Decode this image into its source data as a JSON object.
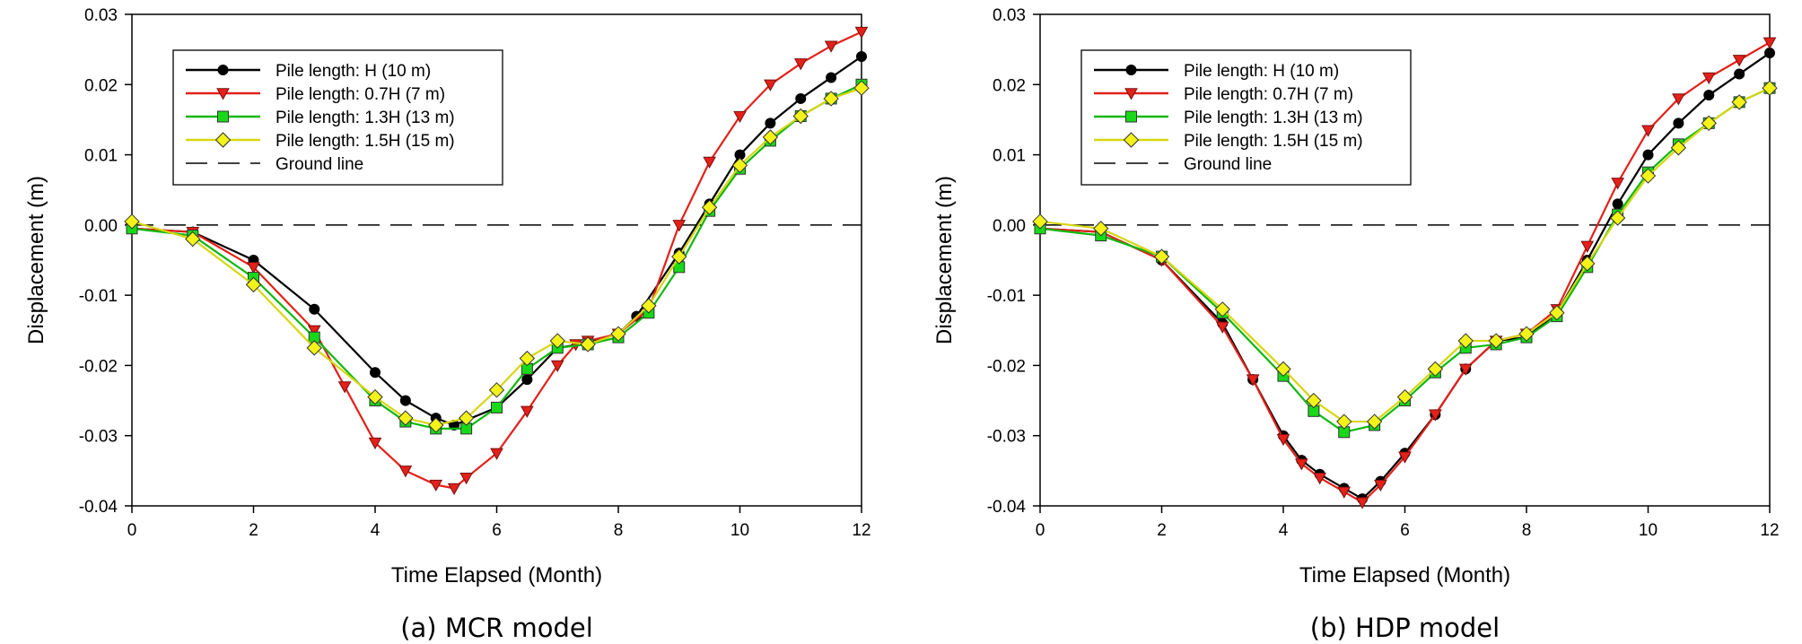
{
  "chart_data": [
    {
      "type": "line",
      "caption": "(a) MCR model",
      "xlabel": "Time Elapsed (Month)",
      "ylabel": "Displacement (m)",
      "xlim": [
        0,
        12
      ],
      "ylim": [
        -0.04,
        0.03
      ],
      "xticks": [
        "0",
        "2",
        "4",
        "6",
        "8",
        "10",
        "12"
      ],
      "yticks": [
        "-0.04",
        "-0.03",
        "-0.02",
        "-0.01",
        "0.00",
        "0.01",
        "0.02",
        "0.03"
      ],
      "grid": false,
      "legend_position": "top-left",
      "reference_line": {
        "name": "Ground line",
        "y": 0.0
      },
      "series": [
        {
          "name": "Pile length: H (10 m)",
          "color": "#000000",
          "marker": "circle",
          "x": [
            0,
            1,
            2,
            3,
            4,
            4.5,
            5,
            5.3,
            6,
            6.5,
            7,
            7.5,
            8,
            8.3,
            9,
            9.5,
            10,
            10.5,
            11,
            11.5,
            12
          ],
          "y": [
            -0.0005,
            -0.001,
            -0.005,
            -0.012,
            -0.021,
            -0.025,
            -0.0275,
            -0.0285,
            -0.026,
            -0.022,
            -0.0175,
            -0.0168,
            -0.0155,
            -0.013,
            -0.004,
            0.003,
            0.01,
            0.0145,
            0.018,
            0.021,
            0.024
          ]
        },
        {
          "name": "Pile length: 0.7H (7 m)",
          "color": "#e32119",
          "marker": "triangle-down",
          "x": [
            0,
            1,
            2,
            3,
            3.5,
            4,
            4.5,
            5,
            5.3,
            5.5,
            6,
            6.5,
            7,
            7.3,
            7.5,
            8,
            8.5,
            9,
            9.5,
            10,
            10.5,
            11,
            11.5,
            12
          ],
          "y": [
            -0.0005,
            -0.001,
            -0.006,
            -0.015,
            -0.023,
            -0.031,
            -0.035,
            -0.037,
            -0.0375,
            -0.036,
            -0.0325,
            -0.0265,
            -0.02,
            -0.017,
            -0.0165,
            -0.0155,
            -0.012,
            0.0,
            0.009,
            0.0155,
            0.02,
            0.023,
            0.0255,
            0.0275
          ]
        },
        {
          "name": "Pile length: 1.3H (13 m)",
          "color": "#18d918",
          "marker": "square",
          "x": [
            0,
            1,
            2,
            3,
            4,
            4.5,
            5,
            5.5,
            6,
            6.5,
            7,
            7.5,
            8,
            8.5,
            9,
            9.5,
            10,
            10.5,
            11,
            11.5,
            12
          ],
          "y": [
            -0.0005,
            -0.0015,
            -0.0075,
            -0.016,
            -0.025,
            -0.028,
            -0.029,
            -0.029,
            -0.026,
            -0.0205,
            -0.0175,
            -0.017,
            -0.016,
            -0.0125,
            -0.006,
            0.002,
            0.008,
            0.012,
            0.0155,
            0.018,
            0.02
          ]
        },
        {
          "name": "Pile length: 1.5H (15 m)",
          "color": "#f3f31a",
          "marker": "diamond",
          "x": [
            0,
            1,
            2,
            3,
            4,
            4.5,
            5,
            5.5,
            6,
            6.5,
            7,
            7.5,
            8,
            8.5,
            9,
            9.5,
            10,
            10.5,
            11,
            11.5,
            12
          ],
          "y": [
            0.0005,
            -0.002,
            -0.0085,
            -0.0175,
            -0.0245,
            -0.0275,
            -0.0285,
            -0.0275,
            -0.0235,
            -0.019,
            -0.0165,
            -0.017,
            -0.0155,
            -0.0115,
            -0.0045,
            0.0025,
            0.0085,
            0.0125,
            0.0155,
            0.018,
            0.0195
          ]
        }
      ]
    },
    {
      "type": "line",
      "caption": "(b) HDP model",
      "xlabel": "Time Elapsed (Month)",
      "ylabel": "Displacement (m)",
      "xlim": [
        0,
        12
      ],
      "ylim": [
        -0.04,
        0.03
      ],
      "xticks": [
        "0",
        "2",
        "4",
        "6",
        "8",
        "10",
        "12"
      ],
      "yticks": [
        "-0.04",
        "-0.03",
        "-0.02",
        "-0.01",
        "0.00",
        "0.01",
        "0.02",
        "0.03"
      ],
      "grid": false,
      "legend_position": "top-left",
      "reference_line": {
        "name": "Ground line",
        "y": 0.0
      },
      "series": [
        {
          "name": "Pile length: H (10 m)",
          "color": "#000000",
          "marker": "circle",
          "x": [
            0,
            1,
            2,
            3,
            3.5,
            4,
            4.3,
            4.6,
            5,
            5.3,
            5.6,
            6,
            6.5,
            7,
            7.5,
            8,
            8.5,
            9,
            9.5,
            10,
            10.5,
            11,
            11.5,
            12
          ],
          "y": [
            -0.0005,
            -0.001,
            -0.005,
            -0.014,
            -0.022,
            -0.03,
            -0.0335,
            -0.0355,
            -0.0375,
            -0.039,
            -0.0365,
            -0.0325,
            -0.027,
            -0.0205,
            -0.0165,
            -0.016,
            -0.0125,
            -0.005,
            0.003,
            0.01,
            0.0145,
            0.0185,
            0.0215,
            0.0245
          ]
        },
        {
          "name": "Pile length: 0.7H (7 m)",
          "color": "#e32119",
          "marker": "triangle-down",
          "x": [
            0,
            1,
            2,
            3,
            3.5,
            4,
            4.3,
            4.6,
            5,
            5.3,
            5.6,
            6,
            6.5,
            7,
            7.5,
            8,
            8.5,
            9,
            9.5,
            10,
            10.5,
            11,
            11.5,
            12
          ],
          "y": [
            -0.0005,
            -0.001,
            -0.005,
            -0.0145,
            -0.022,
            -0.0305,
            -0.034,
            -0.036,
            -0.038,
            -0.0395,
            -0.037,
            -0.033,
            -0.027,
            -0.0205,
            -0.0165,
            -0.0155,
            -0.012,
            -0.003,
            0.006,
            0.0135,
            0.018,
            0.021,
            0.0235,
            0.026
          ]
        },
        {
          "name": "Pile length: 1.3H (13 m)",
          "color": "#18d918",
          "marker": "square",
          "x": [
            0,
            1,
            2,
            3,
            4,
            4.5,
            5,
            5.5,
            6,
            6.5,
            7,
            7.5,
            8,
            8.5,
            9,
            9.5,
            10,
            10.5,
            11,
            11.5,
            12
          ],
          "y": [
            -0.0005,
            -0.0015,
            -0.0045,
            -0.0125,
            -0.0215,
            -0.0265,
            -0.0295,
            -0.0285,
            -0.025,
            -0.021,
            -0.0175,
            -0.017,
            -0.016,
            -0.013,
            -0.006,
            0.0015,
            0.0075,
            0.0115,
            0.0145,
            0.0175,
            0.0195
          ]
        },
        {
          "name": "Pile length: 1.5H (15 m)",
          "color": "#f3f31a",
          "marker": "diamond",
          "x": [
            0,
            1,
            2,
            3,
            4,
            4.5,
            5,
            5.5,
            6,
            6.5,
            7,
            7.5,
            8,
            8.5,
            9,
            9.5,
            10,
            10.5,
            11,
            11.5,
            12
          ],
          "y": [
            0.0005,
            -0.0005,
            -0.0045,
            -0.012,
            -0.0205,
            -0.025,
            -0.028,
            -0.028,
            -0.0245,
            -0.0205,
            -0.0165,
            -0.0165,
            -0.0155,
            -0.0125,
            -0.0055,
            0.001,
            0.007,
            0.011,
            0.0145,
            0.0175,
            0.0195
          ]
        }
      ]
    }
  ]
}
